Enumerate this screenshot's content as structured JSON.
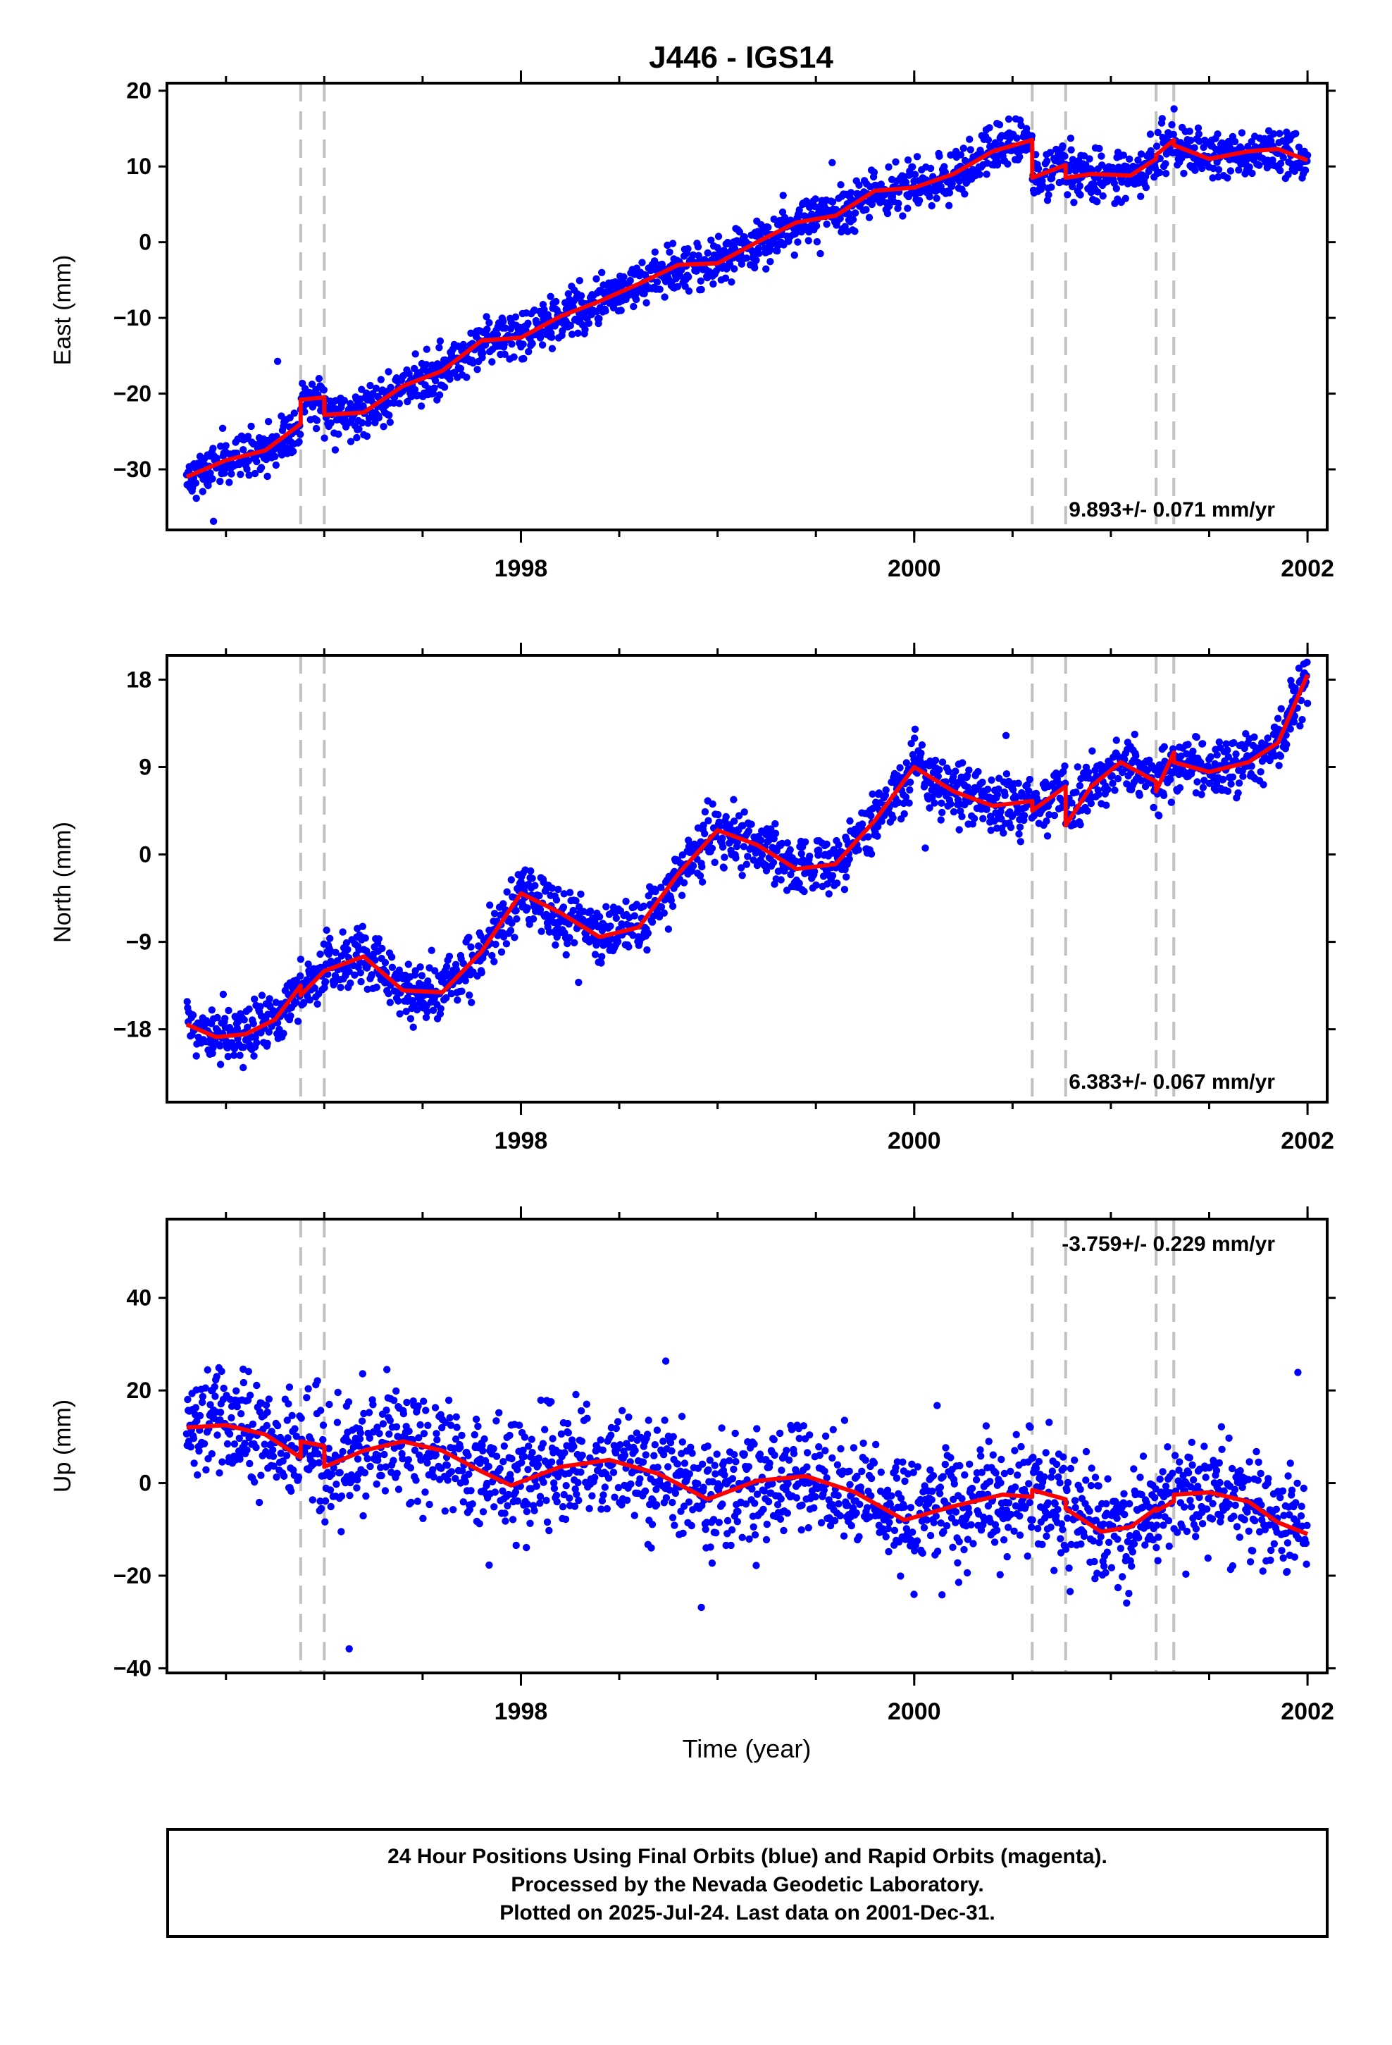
{
  "chart_data": [
    {
      "type": "scatter",
      "panel": "east",
      "title": "J446 - IGS14",
      "ylabel": "East (mm)",
      "xlabel": "",
      "xlim": [
        1996.2,
        2002.1
      ],
      "ylim": [
        -38,
        21
      ],
      "yticks": [
        -30,
        -20,
        -10,
        0,
        10,
        20
      ],
      "xticks": [
        1998,
        2000,
        2002
      ],
      "grid": false,
      "rate_label": "9.893+/- 0.071 mm/yr",
      "rate_position": "bottom-right",
      "event_lines": [
        1996.88,
        1997.0,
        2000.6,
        2000.77,
        2001.23,
        2001.32
      ],
      "point_color": "#0000ff",
      "model_color": "#ff0000",
      "event_line_color": "#c0c0c0",
      "trend": {
        "t0": 1996.3,
        "v0": -31.0,
        "rate": 9.893,
        "seasonal_amp": 1.6,
        "noise": 2.2
      },
      "model": {
        "x": [
          1996.3,
          1996.5,
          1996.7,
          1996.88,
          1996.88,
          1997.0,
          1997.0,
          1997.2,
          1997.4,
          1997.6,
          1997.8,
          1998.0,
          1998.2,
          1998.4,
          1998.6,
          1998.8,
          1999.0,
          1999.2,
          1999.4,
          1999.6,
          1999.8,
          2000.0,
          2000.2,
          2000.4,
          2000.6,
          2000.6,
          2000.77,
          2000.77,
          2000.9,
          2001.1,
          2001.23,
          2001.23,
          2001.32,
          2001.32,
          2001.5,
          2001.7,
          2001.85,
          2002.0
        ],
        "y": [
          -31.0,
          -28.8,
          -27.5,
          -24.0,
          -20.8,
          -20.5,
          -22.8,
          -22.5,
          -19.0,
          -17.0,
          -13.0,
          -12.6,
          -9.8,
          -7.8,
          -5.5,
          -3.0,
          -2.8,
          0.0,
          2.6,
          3.5,
          6.8,
          7.2,
          9.0,
          12.0,
          13.5,
          8.5,
          10.2,
          8.5,
          9.0,
          8.8,
          11.0,
          11.5,
          13.5,
          12.8,
          11.0,
          12.0,
          12.3,
          10.8
        ]
      }
    },
    {
      "type": "scatter",
      "panel": "north",
      "title": "",
      "ylabel": "North (mm)",
      "xlabel": "",
      "xlim": [
        1996.2,
        2002.1
      ],
      "ylim": [
        -25.5,
        20.5
      ],
      "yticks": [
        -18,
        -9,
        0,
        9,
        18
      ],
      "xticks": [
        1998,
        2000,
        2002
      ],
      "grid": false,
      "rate_label": "6.383+/- 0.067 mm/yr",
      "rate_position": "bottom-right",
      "event_lines": [
        1996.88,
        1997.0,
        2000.6,
        2000.77,
        2001.23,
        2001.32
      ],
      "point_color": "#0000ff",
      "model_color": "#ff0000",
      "event_line_color": "#c0c0c0",
      "trend": {
        "t0": 1996.3,
        "v0": -17.5,
        "rate": 6.383,
        "seasonal_amp": 4.2,
        "noise": 2.0
      },
      "model": {
        "x": [
          1996.3,
          1996.45,
          1996.6,
          1996.75,
          1996.88,
          1996.88,
          1997.0,
          1997.2,
          1997.4,
          1997.6,
          1997.8,
          1998.0,
          1998.2,
          1998.4,
          1998.6,
          1998.8,
          1999.0,
          1999.2,
          1999.4,
          1999.6,
          1999.8,
          2000.0,
          2000.2,
          2000.4,
          2000.6,
          2000.6,
          2000.77,
          2000.77,
          2000.9,
          2001.05,
          2001.23,
          2001.23,
          2001.32,
          2001.32,
          2001.5,
          2001.7,
          2001.85,
          2002.0
        ],
        "y": [
          -17.5,
          -18.8,
          -18.5,
          -17.0,
          -13.5,
          -14.5,
          -12.0,
          -10.5,
          -14.0,
          -14.2,
          -10.0,
          -4.0,
          -6.0,
          -8.5,
          -7.5,
          -2.0,
          2.5,
          1.0,
          -1.5,
          -1.0,
          3.5,
          9.0,
          6.5,
          5.0,
          5.5,
          4.5,
          7.0,
          3.0,
          7.0,
          9.5,
          7.5,
          6.5,
          10.5,
          9.5,
          8.5,
          9.5,
          11.5,
          18.5
        ]
      }
    },
    {
      "type": "scatter",
      "panel": "up",
      "title": "",
      "ylabel": "Up (mm)",
      "xlabel": "Time (year)",
      "xlim": [
        1996.2,
        2002.1
      ],
      "ylim": [
        -41,
        57
      ],
      "yticks": [
        -40,
        -20,
        0,
        20,
        40
      ],
      "xticks": [
        1998,
        2000,
        2002
      ],
      "grid": false,
      "rate_label": "-3.759+/- 0.229 mm/yr",
      "rate_position": "top-right",
      "event_lines": [
        1996.88,
        1997.0,
        2000.6,
        2000.77,
        2001.23,
        2001.32
      ],
      "point_color": "#0000ff",
      "model_color": "#ff0000",
      "event_line_color": "#c0c0c0",
      "trend": {
        "t0": 1996.3,
        "v0": 12.0,
        "rate": -3.759,
        "seasonal_amp": 3.5,
        "noise": 8.5
      },
      "model": {
        "x": [
          1996.3,
          1996.5,
          1996.7,
          1996.88,
          1996.88,
          1997.0,
          1997.0,
          1997.2,
          1997.4,
          1997.6,
          1997.8,
          1997.95,
          1998.2,
          1998.45,
          1998.7,
          1998.95,
          1999.2,
          1999.45,
          1999.7,
          1999.95,
          2000.2,
          2000.45,
          2000.6,
          2000.6,
          2000.77,
          2000.77,
          2000.95,
          2001.1,
          2001.23,
          2001.23,
          2001.32,
          2001.32,
          2001.5,
          2001.7,
          2001.85,
          2002.0
        ],
        "y": [
          12.0,
          12.5,
          10.5,
          5.5,
          9.0,
          8.0,
          3.5,
          7.0,
          9.0,
          7.0,
          2.5,
          -0.5,
          3.5,
          5.0,
          2.0,
          -3.5,
          0.5,
          1.5,
          -2.0,
          -8.0,
          -5.0,
          -2.5,
          -3.0,
          -1.5,
          -3.5,
          -5.5,
          -10.5,
          -9.5,
          -5.5,
          -6.0,
          -4.0,
          -2.5,
          -2.0,
          -4.0,
          -8.5,
          -11.0
        ]
      }
    }
  ],
  "footer": {
    "line1": "24 Hour Positions Using Final Orbits (blue) and Rapid Orbits (magenta).",
    "line2": "Processed by the Nevada Geodetic Laboratory.",
    "line3": "Plotted on 2025-Jul-24. Last data on 2001-Dec-31."
  }
}
